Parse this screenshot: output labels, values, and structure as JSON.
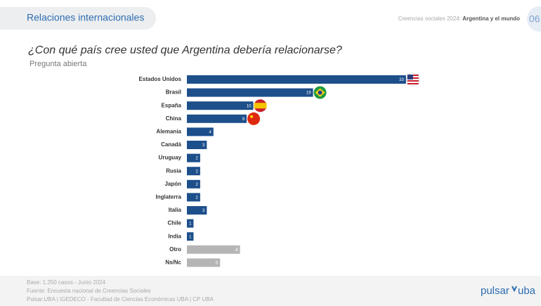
{
  "header": {
    "section": "Relaciones internacionales",
    "report": "Creencias sociales 2024:",
    "report_bold": "Argentina y el mundo",
    "page": "06"
  },
  "chart_data": {
    "type": "bar",
    "orientation": "horizontal",
    "title": "¿Con qué país cree usted que Argentina debería relacionarse?",
    "subtitle": "Pregunta abierta",
    "categories": [
      "Estados Unidos",
      "Brasil",
      "España",
      "China",
      "Alemania",
      "Canadá",
      "Uruguay",
      "Rusia",
      "Japón",
      "Inglaterra",
      "Italia",
      "Chile",
      "India",
      "Otro",
      "Ns/Nc"
    ],
    "values": [
      33,
      19,
      10,
      9,
      4,
      3,
      2,
      2,
      2,
      2,
      3,
      1,
      1,
      8,
      5
    ],
    "colors": [
      "#1d4f8b",
      "#1d4f8b",
      "#1d4f8b",
      "#1d4f8b",
      "#1d4f8b",
      "#1d4f8b",
      "#1d4f8b",
      "#1d4f8b",
      "#1d4f8b",
      "#1d4f8b",
      "#1d4f8b",
      "#1d4f8b",
      "#1d4f8b",
      "#b5b5b5",
      "#b5b5b5"
    ]
  },
  "footer": {
    "lines": [
      "Base: 1.250 casos - Junio 2024",
      "Fuente: Encuesta nacional de Creencias Sociales",
      "Pulsar.UBA | IGEDECO - Facultad de Ciencias Económicas UBA | CP UBA"
    ],
    "logo_left": "pulsar",
    "logo_right": "uba"
  }
}
